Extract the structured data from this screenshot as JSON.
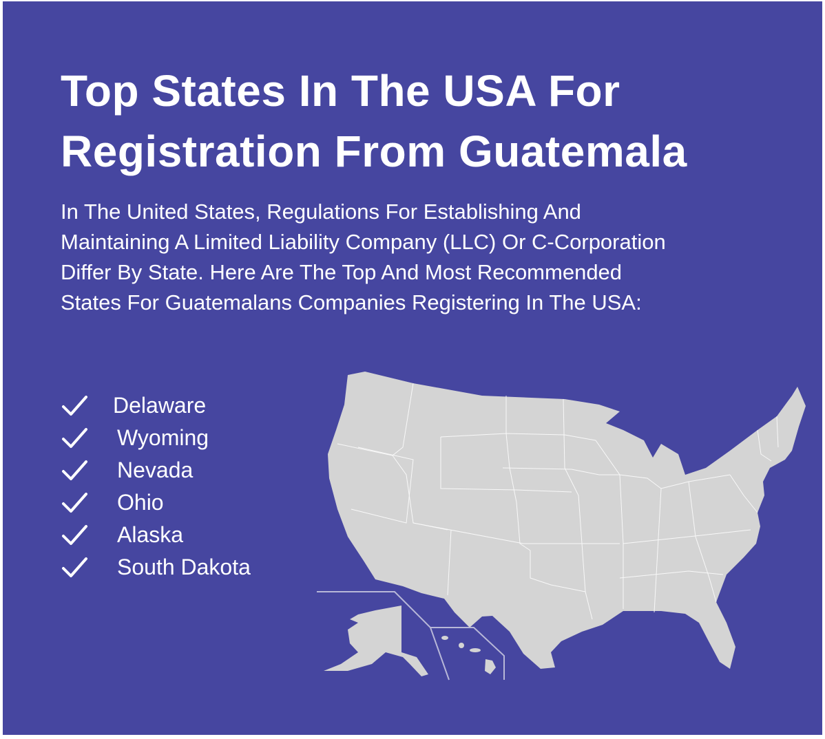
{
  "title": {
    "line1": "Top States In The USA For",
    "line2": "Registration From Guatemala"
  },
  "intro": "In The United States, Regulations For Establishing And Maintaining A Limited Liability Company (LLC) Or C-Corporation Differ By State. Here Are The Top And Most Recommended States For Guatemalans Companies Registering In The USA:",
  "states": [
    {
      "label": "Delaware",
      "icon": "checkmark-icon"
    },
    {
      "label": "Wyoming",
      "icon": "checkmark-icon"
    },
    {
      "label": "Nevada",
      "icon": "checkmark-icon"
    },
    {
      "label": "Ohio",
      "icon": "checkmark-icon"
    },
    {
      "label": "Alaska",
      "icon": "checkmark-icon"
    },
    {
      "label": "South Dakota",
      "icon": "checkmark-icon"
    }
  ],
  "colors": {
    "background": "#4646a0",
    "text": "#ffffff",
    "map_fill": "#d4d4d4"
  }
}
